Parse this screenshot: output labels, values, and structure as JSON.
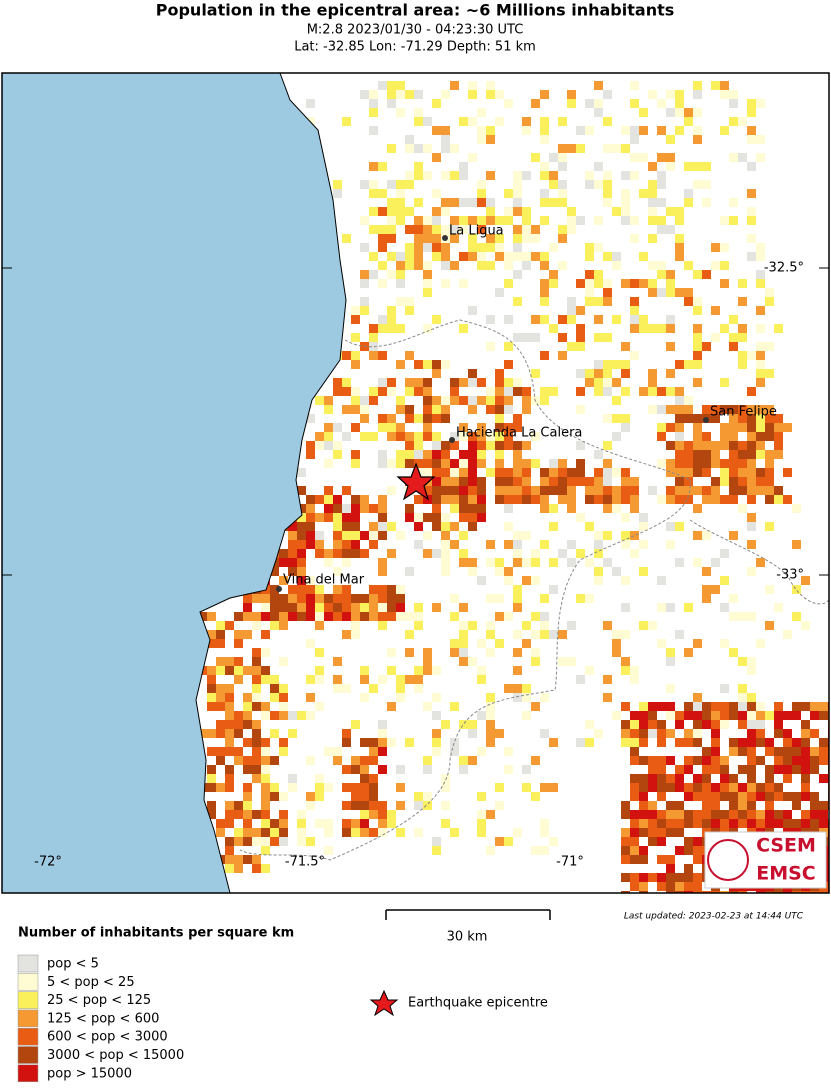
{
  "header": {
    "title": "Population in the epicentral area: ~6 Millions inhabitants",
    "line1": "M:2.8 2023/01/30 - 04:23:30 UTC",
    "line2": "Lat: -32.85 Lon: -71.29 Depth: 51 km"
  },
  "map": {
    "cities": [
      "La Ligua",
      "Hacienda La Calera",
      "San Felipe",
      "Vina del Mar"
    ],
    "lon_labels": [
      "-72°",
      "-71.5°",
      "-71°"
    ],
    "lat_labels": [
      "-32.5°",
      "-33°"
    ],
    "scale": "30 km",
    "updated": "Last updated: 2023-02-23 at 14:44 UTC",
    "logo": [
      "CSEM",
      "EMSC"
    ]
  },
  "legend": {
    "title": "Number of inhabitants per square km",
    "entries": [
      {
        "label": "pop < 5",
        "color": "#e3e3df"
      },
      {
        "label": "5 < pop < 25",
        "color": "#fffbd2"
      },
      {
        "label": "25 < pop < 125",
        "color": "#faf05c"
      },
      {
        "label": "125 < pop < 600",
        "color": "#f59a32"
      },
      {
        "label": "600 < pop < 3000",
        "color": "#e85d13"
      },
      {
        "label": "3000 < pop < 15000",
        "color": "#b3450f"
      },
      {
        "label": "pop > 15000",
        "color": "#d2120f"
      }
    ],
    "epicentre": "Earthquake epicentre"
  }
}
